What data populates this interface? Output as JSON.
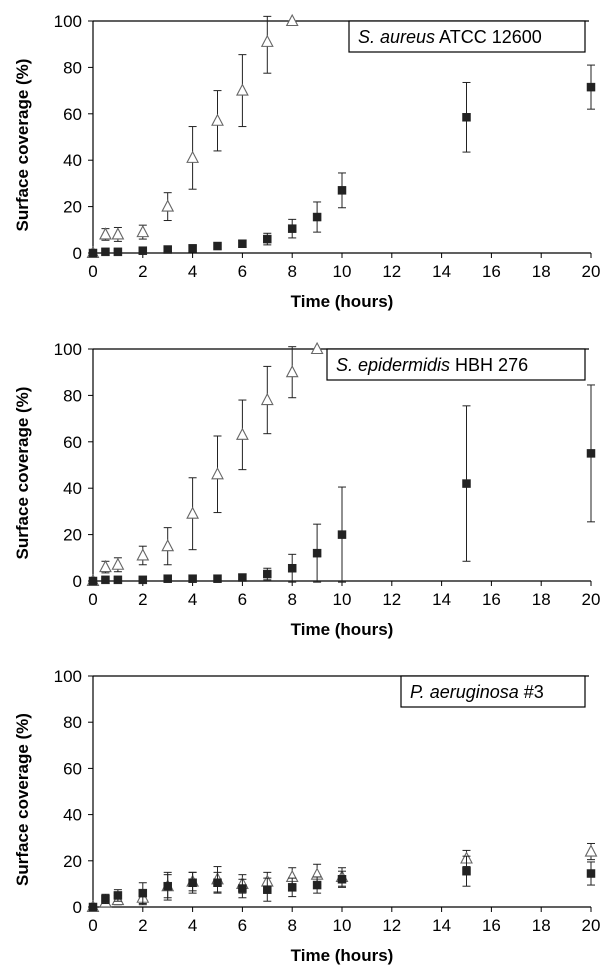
{
  "chart_data": [
    {
      "type": "scatter",
      "title": "",
      "label_italic": "S. aureus",
      "label_rest": " ATCC 12600",
      "xlabel": "Time (hours)",
      "ylabel": "Surface coverage (%)",
      "xlim": [
        0,
        20
      ],
      "ylim": [
        0,
        100
      ],
      "xticks": [
        0,
        2,
        4,
        6,
        8,
        10,
        12,
        14,
        16,
        18,
        20
      ],
      "yticks": [
        0,
        20,
        40,
        60,
        80,
        100
      ],
      "legend_position": "top-right",
      "series": [
        {
          "marker": "open-triangle",
          "x": [
            0,
            0.5,
            1,
            2,
            3,
            4,
            5,
            6,
            7,
            8
          ],
          "y": [
            0,
            8,
            8,
            9,
            20,
            41,
            57,
            70,
            91,
            100
          ],
          "err": [
            0,
            2.5,
            3,
            3,
            6,
            13.5,
            13,
            15.5,
            13.5,
            0
          ]
        },
        {
          "marker": "filled-square",
          "x": [
            0,
            0.5,
            1,
            2,
            3,
            4,
            5,
            6,
            7,
            8,
            9,
            10,
            15,
            20
          ],
          "y": [
            0,
            0.5,
            0.5,
            1,
            1.5,
            2,
            3,
            4,
            6,
            10.5,
            15.5,
            27,
            58.5,
            71.5
          ],
          "err": [
            0,
            0.5,
            0.5,
            1,
            1,
            1,
            1.5,
            1.5,
            2.5,
            4,
            6.5,
            7.5,
            15,
            9.5
          ]
        }
      ]
    },
    {
      "type": "scatter",
      "title": "",
      "label_italic": "S. epidermidis",
      "label_rest": " HBH 276",
      "xlabel": "Time (hours)",
      "ylabel": "Surface coverage (%)",
      "xlim": [
        0,
        20
      ],
      "ylim": [
        0,
        100
      ],
      "xticks": [
        0,
        2,
        4,
        6,
        8,
        10,
        12,
        14,
        16,
        18,
        20
      ],
      "yticks": [
        0,
        20,
        40,
        60,
        80,
        100
      ],
      "legend_position": "top-right",
      "series": [
        {
          "marker": "open-triangle",
          "x": [
            0,
            0.5,
            1,
            2,
            3,
            4,
            5,
            6,
            7,
            8,
            9
          ],
          "y": [
            0,
            6,
            7,
            11,
            15,
            29,
            46,
            63,
            78,
            90,
            100
          ],
          "err": [
            0,
            2.5,
            3,
            4,
            8,
            15.5,
            16.5,
            15,
            14.5,
            11,
            0
          ]
        },
        {
          "marker": "filled-square",
          "x": [
            0,
            0.5,
            1,
            2,
            3,
            4,
            5,
            6,
            7,
            8,
            9,
            10,
            15,
            20
          ],
          "y": [
            0,
            0.5,
            0.5,
            0.5,
            1,
            1,
            1,
            1.5,
            3,
            5.5,
            12,
            20,
            42,
            55
          ],
          "err": [
            0,
            0.5,
            0.5,
            0.5,
            1,
            1,
            1,
            1.5,
            2.5,
            6,
            12.5,
            20.5,
            33.5,
            29.5
          ]
        }
      ]
    },
    {
      "type": "scatter",
      "title": "",
      "label_italic": "P. aeruginosa",
      "label_rest": " #3",
      "xlabel": "Time (hours)",
      "ylabel": "Surface coverage (%)",
      "xlim": [
        0,
        20
      ],
      "ylim": [
        0,
        100
      ],
      "xticks": [
        0,
        2,
        4,
        6,
        8,
        10,
        12,
        14,
        16,
        18,
        20
      ],
      "yticks": [
        0,
        20,
        40,
        60,
        80,
        100
      ],
      "legend_position": "top-right",
      "series": [
        {
          "marker": "open-triangle",
          "x": [
            0,
            0.5,
            1,
            2,
            3,
            4,
            5,
            6,
            7,
            8,
            9,
            10,
            15,
            20
          ],
          "y": [
            0,
            2,
            3,
            4,
            9,
            11,
            12,
            10,
            11,
            13,
            14,
            13,
            21,
            24
          ],
          "err": [
            0,
            1,
            2,
            3,
            5,
            4,
            5.5,
            4,
            4,
            4,
            4.5,
            4,
            3.5,
            3.5
          ]
        },
        {
          "marker": "filled-square",
          "x": [
            0,
            0.5,
            1,
            2,
            3,
            4,
            5,
            6,
            7,
            8,
            9,
            10,
            15,
            20
          ],
          "y": [
            0,
            3.5,
            5,
            6,
            9,
            10.5,
            10.5,
            8,
            7.5,
            8.5,
            9.5,
            12,
            15.5,
            14.5
          ],
          "err": [
            0,
            2,
            2.5,
            4.5,
            6,
            4.5,
            4.5,
            4,
            5,
            4,
            3.5,
            3.5,
            6.5,
            5
          ]
        }
      ]
    }
  ]
}
